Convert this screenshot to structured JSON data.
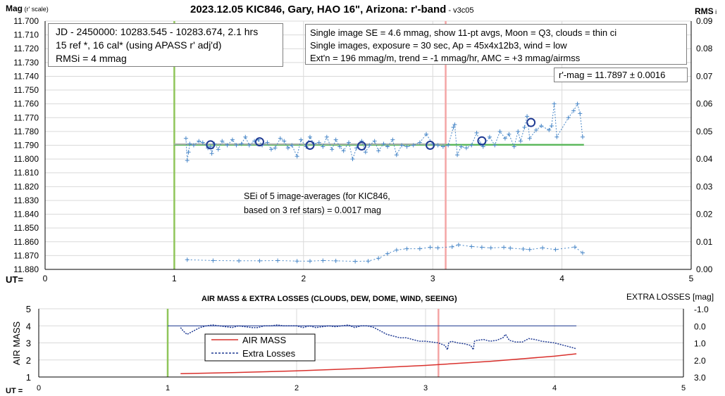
{
  "chart_data": [
    {
      "type": "scatter",
      "title": "2023.12.05 KIC846, Gary, HAO 16\", Arizona: r'-band",
      "title_suffix": " - v3c05",
      "ylabel": "Mag",
      "ylabel_suffix": " (r' scale)",
      "y2label": "RMS",
      "y2label_suffix": " i",
      "xlabel": "UT=",
      "xlim": [
        0,
        5
      ],
      "ylim": [
        11.7,
        11.88
      ],
      "y_reversed": true,
      "y2lim": [
        0,
        0.09
      ],
      "x_ticks": [
        "0",
        "1",
        "2",
        "3",
        "4",
        "5"
      ],
      "y_ticks": [
        "11.700",
        "11.710",
        "11.720",
        "11.730",
        "11.740",
        "11.750",
        "11.760",
        "11.770",
        "11.780",
        "11.790",
        "11.800",
        "11.810",
        "11.820",
        "11.830",
        "11.840",
        "11.850",
        "11.860",
        "11.870",
        "11.880"
      ],
      "y2_ticks": [
        "0.00",
        "0.01",
        "0.02",
        "0.03",
        "0.04",
        "0.05",
        "0.06",
        "0.07",
        "0.08",
        "0.09"
      ],
      "grid": true,
      "vlines": [
        {
          "x": 1.0,
          "color": "#8fc55a"
        },
        {
          "x": 3.1,
          "color": "#f4a5a5"
        }
      ],
      "reference_level": {
        "y": 11.7897,
        "x_start": 1.0,
        "x_end": 4.17,
        "color": "#5cb85c",
        "gray_end": 3.1
      },
      "annotations": [
        {
          "lines": [
            "JD - 2450000: 10283.545 - 10283.674, 2.1 hrs",
            "15 ref *, 16 cal* (using APASS r' adj'd)",
            "RMSi = 4 mmag"
          ]
        },
        {
          "lines": [
            "Single image SE = 4.6 mmag, show  11-pt avgs, Moon = Q3, clouds = thin ci",
            "Single images, exposure = 30 sec, Ap = 45x4x12b3, wind = low",
            "Ext'n = 196 mmag/m, trend = -1  mmag/hr, AMC = +3 mmag/airmss"
          ]
        },
        {
          "lines": [
            "r'-mag = 11.7897 ± 0.0016"
          ]
        },
        {
          "lines": [
            "SEi of 5 image-averages (for KIC846,",
            "based on 3 ref stars) = 0.0017 mag"
          ]
        }
      ],
      "series": [
        {
          "role": "single images",
          "color": "#4a88c8",
          "x": [
            1.09,
            1.1,
            1.11,
            1.12,
            1.15,
            1.19,
            1.22,
            1.26,
            1.28,
            1.29,
            1.31,
            1.34,
            1.37,
            1.41,
            1.45,
            1.48,
            1.52,
            1.55,
            1.58,
            1.62,
            1.65,
            1.68,
            1.72,
            1.75,
            1.78,
            1.82,
            1.85,
            1.88,
            1.91,
            1.95,
            1.98,
            2.02,
            2.05,
            2.08,
            2.12,
            2.15,
            2.18,
            2.22,
            2.25,
            2.28,
            2.31,
            2.35,
            2.38,
            2.41,
            2.45,
            2.48,
            2.51,
            2.55,
            2.58,
            2.62,
            2.65,
            2.69,
            2.72,
            2.76,
            2.8,
            2.85,
            2.9,
            2.95,
            3.0,
            3.04,
            3.08,
            3.12,
            3.16,
            3.17,
            3.19,
            3.22,
            3.26,
            3.3,
            3.34,
            3.37,
            3.39,
            3.44,
            3.48,
            3.52,
            3.56,
            3.59,
            3.63,
            3.66,
            3.68,
            3.71,
            3.73,
            3.75,
            3.8,
            3.84,
            3.9,
            3.92,
            3.94,
            3.96,
            4.05,
            4.09,
            4.12,
            4.14,
            4.16
          ],
          "y": [
            11.785,
            11.801,
            11.795,
            11.789,
            11.79,
            11.787,
            11.788,
            11.792,
            11.791,
            11.796,
            11.789,
            11.793,
            11.787,
            11.79,
            11.786,
            11.79,
            11.789,
            11.784,
            11.79,
            11.787,
            11.786,
            11.79,
            11.788,
            11.793,
            11.792,
            11.785,
            11.787,
            11.792,
            11.79,
            11.798,
            11.786,
            11.791,
            11.784,
            11.789,
            11.788,
            11.791,
            11.784,
            11.793,
            11.786,
            11.791,
            11.794,
            11.788,
            11.8,
            11.792,
            11.787,
            11.795,
            11.79,
            11.787,
            11.794,
            11.789,
            11.791,
            11.786,
            11.797,
            11.79,
            11.791,
            11.79,
            11.788,
            11.782,
            11.789,
            11.79,
            11.791,
            11.79,
            11.777,
            11.775,
            11.797,
            11.791,
            11.792,
            11.79,
            11.781,
            11.789,
            11.791,
            11.784,
            11.79,
            11.78,
            11.785,
            11.782,
            11.791,
            11.78,
            11.787,
            11.777,
            11.769,
            11.785,
            11.779,
            11.776,
            11.779,
            11.776,
            11.76,
            11.784,
            11.77,
            11.765,
            11.76,
            11.767,
            11.784
          ]
        },
        {
          "role": "11-pt averages",
          "color": "#1f3a93",
          "x": [
            1.28,
            1.66,
            2.05,
            2.45,
            2.98,
            3.38,
            3.76
          ],
          "y": [
            11.7897,
            11.7875,
            11.79,
            11.7905,
            11.79,
            11.7868,
            11.7735
          ]
        },
        {
          "role": "RMS i (right axis)",
          "color": "#4a88c8",
          "x": [
            1.1,
            1.3,
            1.5,
            1.66,
            1.8,
            1.95,
            2.05,
            2.15,
            2.25,
            2.4,
            2.5,
            2.58,
            2.65,
            2.72,
            2.8,
            2.9,
            2.98,
            3.04,
            3.15,
            3.2,
            3.3,
            3.38,
            3.45,
            3.55,
            3.6,
            3.7,
            3.75,
            3.85,
            3.95,
            4.1,
            4.16
          ],
          "y": [
            0.0035,
            0.0032,
            0.0031,
            0.0031,
            0.0032,
            0.003,
            0.003,
            0.0032,
            0.0031,
            0.0029,
            0.003,
            0.004,
            0.0057,
            0.007,
            0.0075,
            0.0075,
            0.008,
            0.0078,
            0.0082,
            0.0089,
            0.0083,
            0.008,
            0.0078,
            0.008,
            0.0077,
            0.0074,
            0.0072,
            0.0078,
            0.0072,
            0.0081,
            0.006
          ]
        }
      ]
    },
    {
      "type": "line",
      "title": "AIR MASS & EXTRA LOSSES (CLOUDS, DEW, DOME, WIND, SEEING)",
      "ylabel": "AIR MASS",
      "y2label": "EXTRA LOSSES [mag]",
      "xlabel": "UT =",
      "xlim": [
        0,
        5
      ],
      "ylim": [
        1,
        5
      ],
      "y2lim": [
        -1.0,
        3.0
      ],
      "y2_reversed": true,
      "x_ticks": [
        "0",
        "1",
        "2",
        "3",
        "4",
        "5"
      ],
      "y_ticks": [
        "1",
        "2",
        "3",
        "4",
        "5"
      ],
      "y2_ticks": [
        "-1.0",
        "0.0",
        "1.0",
        "2.0",
        "3.0"
      ],
      "grid": true,
      "vlines": [
        {
          "x": 1.0,
          "color": "#8fc55a"
        },
        {
          "x": 3.1,
          "color": "#f4a5a5"
        }
      ],
      "zero_line": {
        "y2": 0.0,
        "x_start": 1.0,
        "x_end": 4.17,
        "color": "#1f3a93"
      },
      "legend": [
        "AIR MASS",
        "Extra Losses"
      ],
      "legend_position": "center-left",
      "series": [
        {
          "name": "AIR MASS",
          "color": "#d9302c",
          "x": [
            1.1,
            1.5,
            2.0,
            2.5,
            3.0,
            3.5,
            4.0,
            4.17
          ],
          "y": [
            1.2,
            1.26,
            1.36,
            1.5,
            1.68,
            1.92,
            2.22,
            2.36
          ]
        },
        {
          "name": "Extra Losses",
          "color": "#1f3a93",
          "x": [
            1.1,
            1.12,
            1.15,
            1.2,
            1.25,
            1.3,
            1.35,
            1.4,
            1.45,
            1.5,
            1.55,
            1.6,
            1.65,
            1.7,
            1.75,
            1.8,
            1.85,
            1.9,
            1.95,
            2.0,
            2.05,
            2.1,
            2.15,
            2.2,
            2.25,
            2.3,
            2.35,
            2.4,
            2.45,
            2.5,
            2.55,
            2.6,
            2.65,
            2.7,
            2.75,
            2.8,
            2.85,
            2.9,
            2.95,
            3.0,
            3.05,
            3.1,
            3.15,
            3.17,
            3.18,
            3.2,
            3.25,
            3.3,
            3.35,
            3.37,
            3.38,
            3.4,
            3.45,
            3.5,
            3.55,
            3.6,
            3.62,
            3.65,
            3.7,
            3.75,
            3.8,
            3.85,
            3.9,
            3.95,
            4.0,
            4.05,
            4.1,
            4.15,
            4.17
          ],
          "y": [
            0.1,
            0.3,
            0.5,
            0.3,
            0.1,
            0.0,
            -0.05,
            0.0,
            0.05,
            0.1,
            0.0,
            0.05,
            0.1,
            0.1,
            0.0,
            0.0,
            -0.05,
            0.0,
            0.0,
            0.0,
            0.1,
            0.0,
            0.1,
            0.05,
            0.0,
            0.05,
            0.0,
            -0.05,
            0.1,
            0.0,
            0.0,
            0.1,
            0.3,
            0.5,
            0.6,
            0.7,
            0.7,
            0.8,
            0.9,
            0.9,
            0.95,
            1.0,
            1.15,
            1.4,
            1.0,
            0.9,
            1.0,
            1.05,
            1.15,
            1.4,
            0.9,
            0.85,
            0.8,
            0.9,
            0.85,
            0.7,
            0.5,
            0.85,
            0.95,
            0.95,
            0.75,
            0.8,
            0.9,
            0.95,
            1.0,
            1.1,
            1.2,
            1.3,
            1.35
          ]
        }
      ]
    }
  ]
}
